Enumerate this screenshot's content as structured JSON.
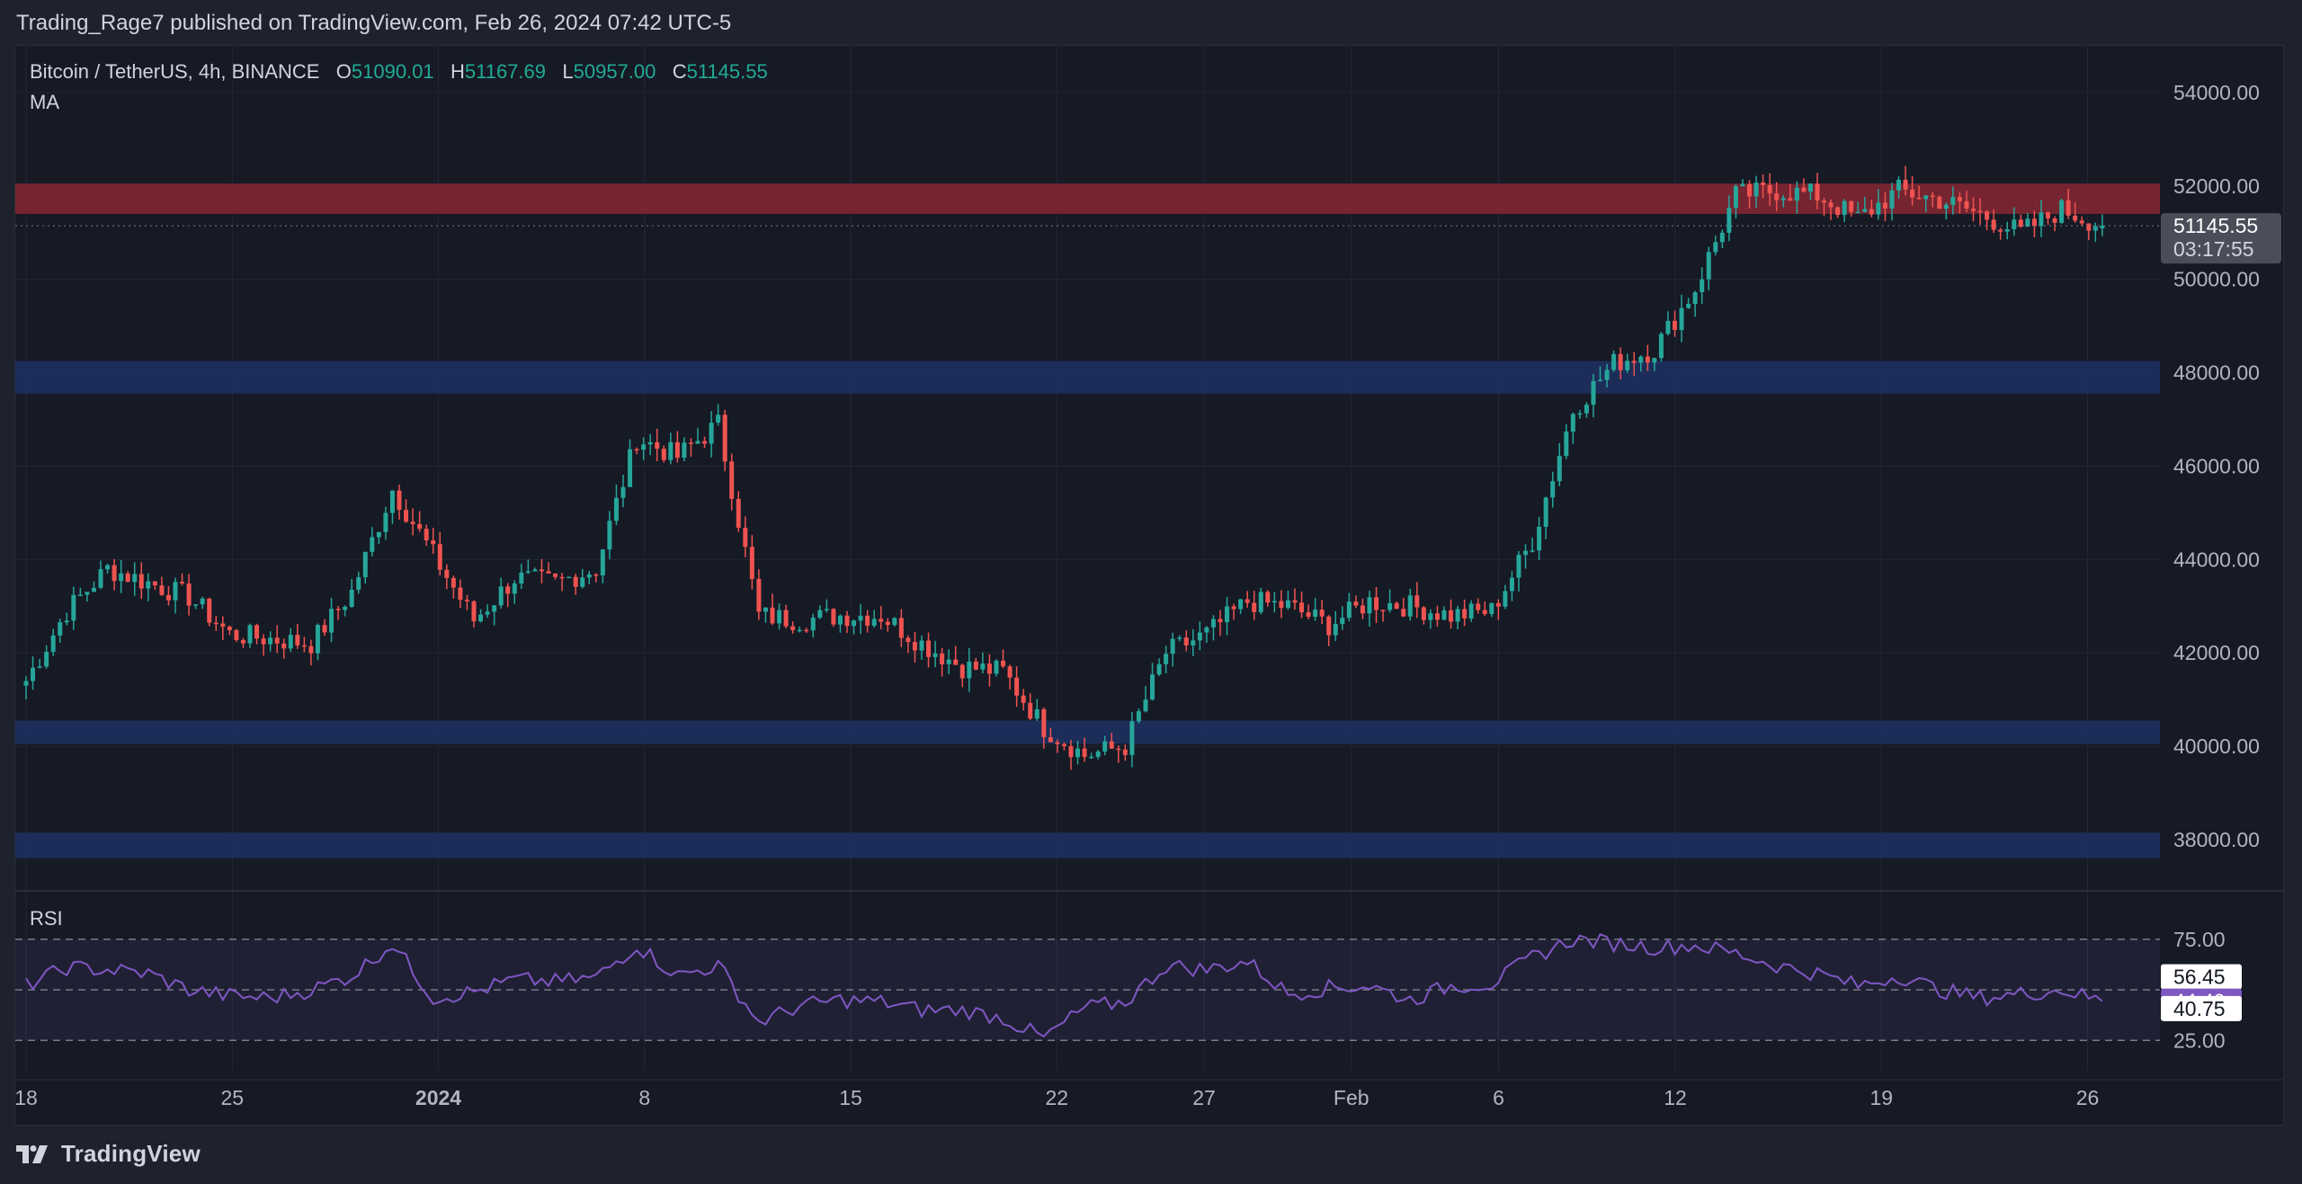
{
  "header": {
    "published_text": "Trading_Rage7 published on TradingView.com, Feb 26, 2024 07:42 UTC-5"
  },
  "legend": {
    "symbol": "Bitcoin / TetherUS, 4h, BINANCE",
    "o_label": "O",
    "o_value": "51090.01",
    "h_label": "H",
    "h_value": "51167.69",
    "l_label": "L",
    "l_value": "50957.00",
    "c_label": "C",
    "c_value": "51145.55",
    "indicator": "MA",
    "rsi_title": "RSI"
  },
  "price_tag": {
    "price": "51145.55",
    "countdown": "03:17:55"
  },
  "rsi_tags": [
    "56.45",
    "44.40",
    "40.75"
  ],
  "footer": {
    "brand": "TradingView"
  },
  "colors": {
    "up": "#26a69a",
    "down": "#ef5350",
    "rsi": "#7e57c2",
    "resistance_zone": "#7a2530",
    "support_zone": "#1c2e5c",
    "background": "#161a25"
  },
  "chart_data": {
    "type": "candlestick",
    "symbol": "Bitcoin / TetherUS",
    "timeframe": "4h",
    "exchange": "BINANCE",
    "y_ticks": [
      54000,
      52000,
      50000,
      48000,
      46000,
      44000,
      42000,
      40000,
      38000
    ],
    "y_tick_labels": [
      "54000.00",
      "52000.00",
      "50000.00",
      "48000.00",
      "46000.00",
      "44000.00",
      "42000.00",
      "40000.00",
      "38000.00"
    ],
    "ylim": [
      36900,
      55000
    ],
    "x_tick_labels": [
      "18",
      "25",
      "2024",
      "8",
      "15",
      "22",
      "27",
      "Feb",
      "6",
      "12",
      "19",
      "26"
    ],
    "x_tick_days": [
      0,
      7,
      14,
      21,
      28,
      35,
      40,
      45,
      50,
      56,
      63,
      70
    ],
    "zones": [
      {
        "kind": "resistance",
        "low": 51400,
        "high": 52050
      },
      {
        "kind": "support",
        "low": 47550,
        "high": 48250
      },
      {
        "kind": "support",
        "low": 40050,
        "high": 40550
      },
      {
        "kind": "support",
        "low": 37600,
        "high": 38150
      }
    ],
    "closes_daily": [
      41400,
      42900,
      43800,
      43500,
      43200,
      42400,
      42300,
      42200,
      43300,
      45500,
      44100,
      42700,
      43600,
      43500,
      43800,
      46600,
      46200,
      46900,
      42800,
      42700,
      42800,
      42800,
      42200,
      41700,
      41600,
      40400,
      39800,
      40000,
      42000,
      42400,
      43100,
      43000,
      42600,
      43100,
      43000,
      42800,
      42900,
      44400,
      47200,
      48200,
      48500,
      49800,
      51800,
      51900,
      51800,
      51300,
      51900,
      51700,
      51400,
      51000,
      51500,
      51150
    ],
    "close_last": 51145.55,
    "open_last": 51090.01,
    "high_last": 51167.69,
    "low_last": 50957.0,
    "rsi": {
      "levels": [
        75,
        25
      ],
      "level_labels": [
        "75.00",
        "25.00"
      ],
      "values_daily": [
        52,
        61,
        60,
        58,
        50,
        47,
        46,
        50,
        57,
        73,
        46,
        49,
        55,
        54,
        56,
        72,
        57,
        62,
        34,
        42,
        45,
        44,
        40,
        40,
        36,
        26,
        41,
        44,
        62,
        60,
        64,
        48,
        51,
        52,
        45,
        52,
        53,
        66,
        75,
        73,
        71,
        72,
        68,
        62,
        58,
        52,
        57,
        50,
        46,
        48,
        50,
        44.4
      ],
      "current": 44.4
    }
  }
}
